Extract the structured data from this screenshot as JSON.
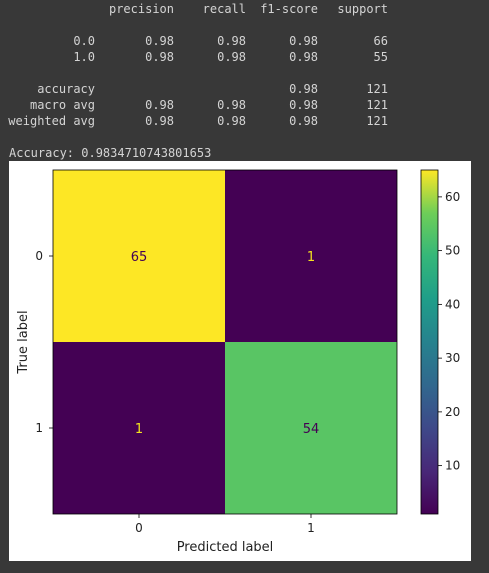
{
  "report": {
    "header": [
      "precision",
      "recall",
      "f1-score",
      "support"
    ],
    "rows": [
      {
        "label": "0.0",
        "precision": "0.98",
        "recall": "0.98",
        "f1": "0.98",
        "support": "66"
      },
      {
        "label": "1.0",
        "precision": "0.98",
        "recall": "0.98",
        "f1": "0.98",
        "support": "55"
      },
      {
        "label": "accuracy",
        "precision": "",
        "recall": "",
        "f1": "0.98",
        "support": "121"
      },
      {
        "label": "macro avg",
        "precision": "0.98",
        "recall": "0.98",
        "f1": "0.98",
        "support": "121"
      },
      {
        "label": "weighted avg",
        "precision": "0.98",
        "recall": "0.98",
        "f1": "0.98",
        "support": "121"
      }
    ]
  },
  "accuracy_line": "Accuracy: 0.9834710743801653",
  "chart_data": {
    "type": "heatmap",
    "xlabel": "Predicted label",
    "ylabel": "True label",
    "x_categories": [
      "0",
      "1"
    ],
    "y_categories": [
      "0",
      "1"
    ],
    "matrix": [
      [
        65,
        1
      ],
      [
        1,
        54
      ]
    ],
    "colormap": "viridis",
    "colorbar": {
      "range": [
        1,
        65
      ],
      "ticks": [
        "10",
        "20",
        "30",
        "40",
        "50",
        "60"
      ]
    },
    "colors": {
      "high": "#f3e51e",
      "mid_high": "#a2da37",
      "low": "#440154",
      "text_on_dark": "#f3e51e",
      "text_on_light": "#440154"
    }
  }
}
